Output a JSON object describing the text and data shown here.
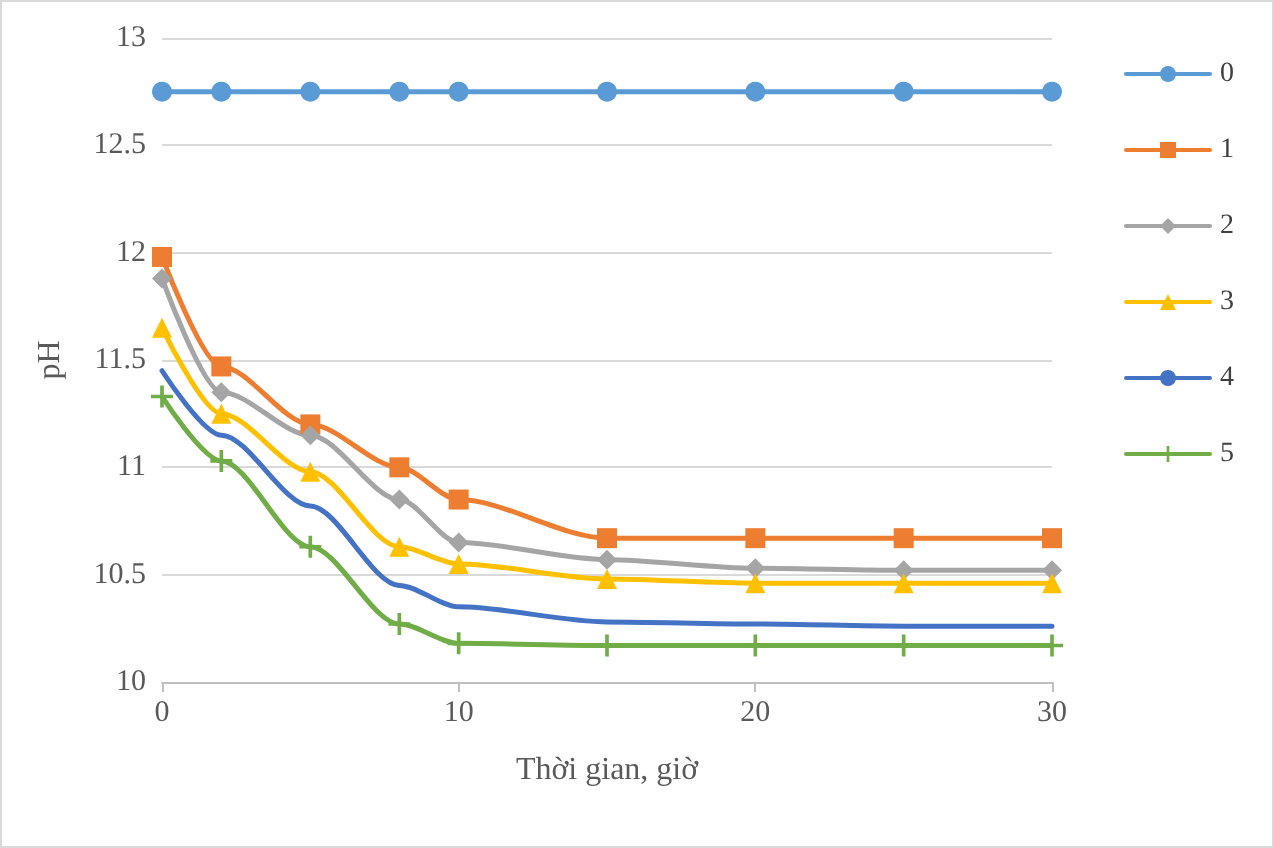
{
  "chart_data": {
    "type": "line",
    "xlabel": "Thời gian, giờ",
    "ylabel": "pH",
    "x": [
      0,
      2,
      5,
      8,
      10,
      15,
      20,
      25,
      30
    ],
    "xlim": [
      0,
      30
    ],
    "xticks": [
      0,
      10,
      20,
      30
    ],
    "ylim": [
      10,
      13
    ],
    "yticks": [
      10,
      10.5,
      11,
      11.5,
      12,
      12.5,
      13
    ],
    "grid": "y",
    "legend": "right",
    "series": [
      {
        "name": "0",
        "color": "#5b9bd5",
        "marker": "circle",
        "values": [
          12.75,
          12.75,
          12.75,
          12.75,
          12.75,
          12.75,
          12.75,
          12.75,
          12.75
        ]
      },
      {
        "name": "1",
        "color": "#ed7d31",
        "marker": "square",
        "values": [
          11.98,
          11.47,
          11.2,
          11.0,
          10.85,
          10.67,
          10.67,
          10.67,
          10.67
        ]
      },
      {
        "name": "2",
        "color": "#a5a5a5",
        "marker": "diamond",
        "values": [
          11.88,
          11.35,
          11.15,
          10.85,
          10.65,
          10.57,
          10.53,
          10.52,
          10.52
        ]
      },
      {
        "name": "3",
        "color": "#ffc000",
        "marker": "triangle",
        "values": [
          11.65,
          11.25,
          10.98,
          10.63,
          10.55,
          10.48,
          10.46,
          10.46,
          10.46
        ]
      },
      {
        "name": "4",
        "color": "#4472c4",
        "marker": "none",
        "values": [
          11.45,
          11.15,
          10.82,
          10.45,
          10.35,
          10.28,
          10.27,
          10.26,
          10.26
        ]
      },
      {
        "name": "5",
        "color": "#70ad47",
        "marker": "cross",
        "values": [
          11.33,
          11.03,
          10.63,
          10.27,
          10.18,
          10.17,
          10.17,
          10.17,
          10.17
        ]
      }
    ]
  }
}
